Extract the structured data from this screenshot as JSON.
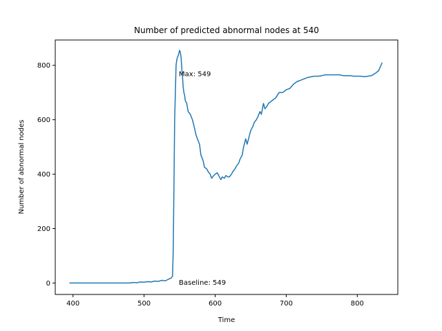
{
  "chart_data": {
    "type": "line",
    "title": "Number of predicted abnormal nodes at 540",
    "xlabel": "Time",
    "ylabel": "Number of abnormal nodes",
    "xlim": [
      375,
      857
    ],
    "ylim": [
      -42,
      893
    ],
    "xticks": [
      400,
      500,
      600,
      700,
      800
    ],
    "yticks": [
      0,
      200,
      400,
      600,
      800
    ],
    "grid": false,
    "line_color": "#1f77b4",
    "series": [
      {
        "x": [
          395,
          420,
          450,
          480,
          485,
          490,
          495,
          500,
          505,
          510,
          515,
          520,
          525,
          530,
          535,
          538,
          540,
          541,
          542,
          543,
          544,
          545,
          546,
          547,
          548,
          549,
          550,
          551,
          552,
          553,
          554,
          555,
          556,
          557,
          558,
          560,
          562,
          565,
          568,
          570,
          573,
          575,
          578,
          580,
          583,
          585,
          588,
          590,
          593,
          595,
          598,
          600,
          603,
          605,
          608,
          610,
          613,
          615,
          618,
          620,
          623,
          625,
          628,
          630,
          633,
          635,
          638,
          640,
          643,
          645,
          648,
          650,
          653,
          655,
          658,
          660,
          663,
          665,
          668,
          670,
          673,
          675,
          680,
          685,
          690,
          695,
          700,
          705,
          710,
          715,
          720,
          725,
          730,
          735,
          740,
          745,
          750,
          755,
          760,
          765,
          770,
          775,
          780,
          785,
          790,
          795,
          800,
          805,
          810,
          815,
          820,
          825,
          830,
          835
        ],
        "y": [
          0,
          0,
          0,
          0,
          2,
          1,
          4,
          3,
          5,
          4,
          7,
          6,
          10,
          8,
          15,
          18,
          25,
          120,
          350,
          600,
          700,
          800,
          820,
          830,
          835,
          845,
          855,
          848,
          830,
          790,
          760,
          720,
          700,
          690,
          670,
          660,
          630,
          620,
          600,
          580,
          545,
          530,
          510,
          470,
          450,
          425,
          420,
          410,
          400,
          385,
          395,
          400,
          405,
          395,
          380,
          390,
          385,
          395,
          390,
          390,
          400,
          410,
          420,
          430,
          440,
          455,
          470,
          500,
          530,
          510,
          540,
          560,
          575,
          590,
          600,
          610,
          630,
          620,
          660,
          640,
          650,
          660,
          670,
          680,
          700,
          700,
          710,
          715,
          730,
          740,
          745,
          750,
          755,
          758,
          760,
          760,
          762,
          765,
          765,
          765,
          765,
          765,
          762,
          762,
          762,
          760,
          760,
          760,
          758,
          760,
          762,
          770,
          780,
          810
        ]
      }
    ],
    "annotations": [
      {
        "text": "Max: 549",
        "x": 549,
        "y": 770
      },
      {
        "text": "Baseline: 549",
        "x": 549,
        "y": 3
      }
    ]
  }
}
